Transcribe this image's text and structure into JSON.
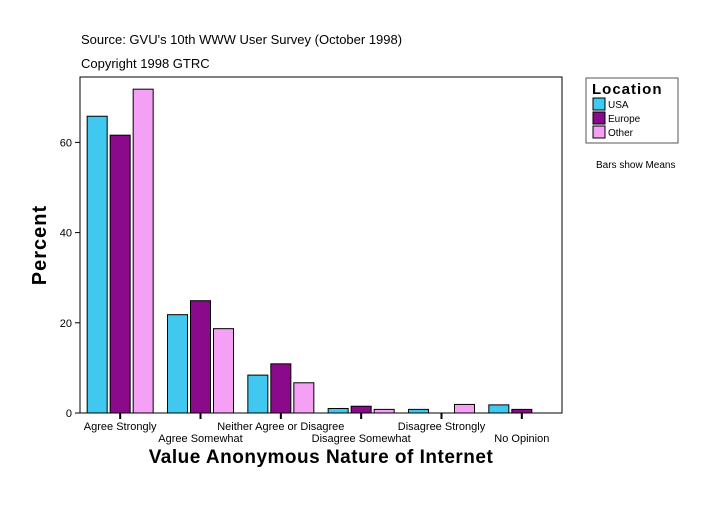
{
  "chart_data": {
    "type": "bar",
    "source": "Source: GVU's 10th WWW User Survey (October 1998)",
    "copyright": "Copyright 1998 GTRC",
    "xlabel": "Value Anonymous Nature of Internet",
    "ylabel": "Percent",
    "ylim": [
      0,
      74.5
    ],
    "yticks": [
      0,
      20,
      40,
      60
    ],
    "grid": false,
    "legend_title": "Location",
    "legend_position": "right",
    "note": "Bars show Means",
    "categories": [
      "Agree Strongly",
      "Agree Somewhat",
      "Neither Agree or Disagree",
      "Disagree Somewhat",
      "Disagree Strongly",
      "No Opinion"
    ],
    "series": [
      {
        "name": "USA",
        "color": "#40C8F0",
        "values": [
          65.8,
          21.8,
          8.4,
          1.0,
          0.8,
          1.8
        ]
      },
      {
        "name": "Europe",
        "color": "#8B0A8B",
        "values": [
          61.6,
          24.9,
          10.9,
          1.5,
          0,
          0.8
        ]
      },
      {
        "name": "Other",
        "color": "#F4A0F4",
        "values": [
          71.8,
          18.7,
          6.7,
          0.8,
          1.9,
          0
        ]
      }
    ]
  }
}
